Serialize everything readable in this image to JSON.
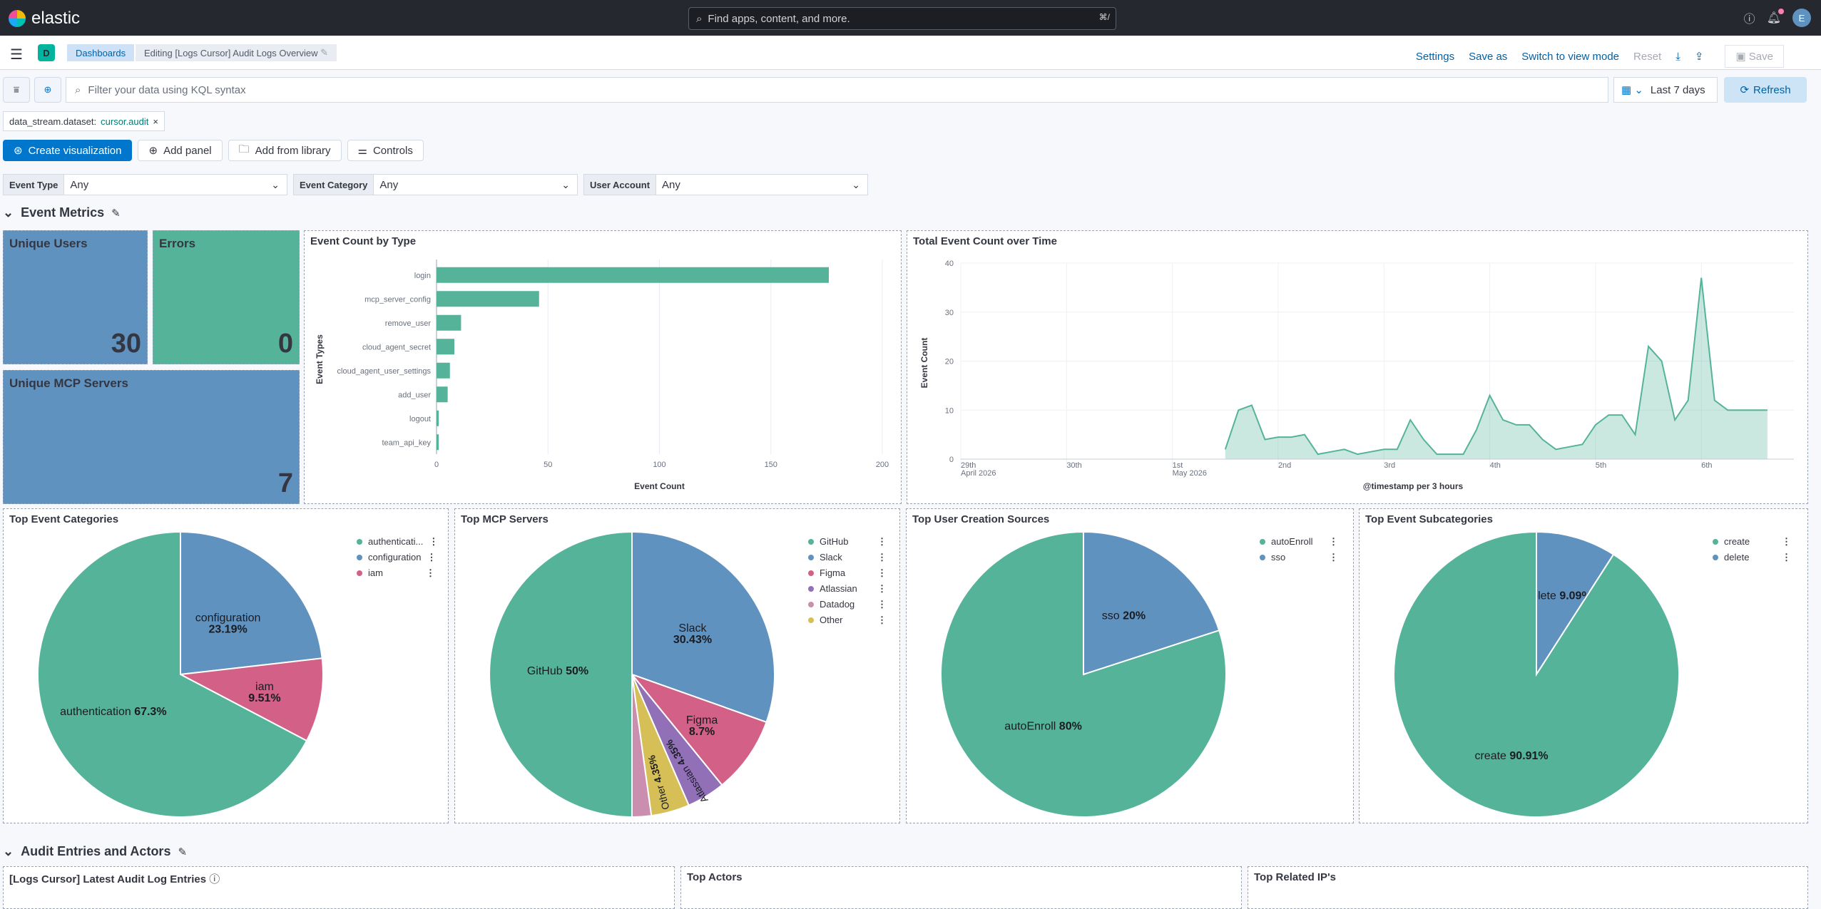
{
  "header": {
    "brand": "elastic",
    "search_placeholder": "Find apps, content, and more.",
    "search_shortcut": "⌘/",
    "user_initial": "E"
  },
  "nav": {
    "space_initial": "D",
    "breadcrumbs": [
      "Dashboards",
      "Editing [Logs Cursor] Audit Logs Overview"
    ],
    "actions": [
      "Settings",
      "Save as",
      "Switch to view mode",
      "Reset",
      "Save"
    ]
  },
  "query": {
    "placeholder": "Filter your data using KQL syntax",
    "time_range": "Last 7 days",
    "refresh_label": "Refresh",
    "filter_key": "data_stream.dataset:",
    "filter_value": "cursor.audit"
  },
  "toolbar": {
    "create_visualization": "Create visualization",
    "add_panel": "Add panel",
    "add_from_library": "Add from library",
    "controls": "Controls"
  },
  "control_inputs": [
    {
      "label": "Event Type",
      "value": "Any"
    },
    {
      "label": "Event Category",
      "value": "Any"
    },
    {
      "label": "User Account",
      "value": "Any"
    }
  ],
  "sections": {
    "event_metrics": "Event Metrics",
    "audit_entries": "Audit Entries and Actors"
  },
  "metrics": [
    {
      "label": "Unique Users",
      "value": "30"
    },
    {
      "label": "Errors",
      "value": "0"
    },
    {
      "label": "Unique MCP Servers",
      "value": "7"
    }
  ],
  "colors": {
    "green": "#54b399",
    "blue": "#6092c0",
    "pink": "#d36086",
    "purple": "#9170b8",
    "rose": "#ca8eae",
    "yellow": "#d6bf57",
    "accent": "#0077cc"
  },
  "chart_data": [
    {
      "type": "bar",
      "title": "Event Count by Type",
      "orientation": "horizontal",
      "categories": [
        "login",
        "mcp_server_config",
        "remove_user",
        "cloud_agent_secret",
        "cloud_agent_user_settings",
        "add_user",
        "logout",
        "team_api_key"
      ],
      "values": [
        176,
        46,
        11,
        8,
        6,
        5,
        1,
        1
      ],
      "xlabel": "Event Count",
      "ylabel": "Event Types",
      "xlim": [
        0,
        200
      ],
      "xticks": [
        "0",
        "50",
        "100",
        "150",
        "200"
      ]
    },
    {
      "type": "area",
      "title": "Total Event Count over Time",
      "ylabel": "Event Count",
      "xlabel": "@timestamp per 3 hours",
      "ylim": [
        0,
        40
      ],
      "yticks": [
        "0",
        "10",
        "20",
        "30",
        "40"
      ],
      "xticks": [
        {
          "label": "29th",
          "sub": "April 2026"
        },
        {
          "label": "30th",
          "sub": ""
        },
        {
          "label": "1st",
          "sub": "May 2026"
        },
        {
          "label": "2nd",
          "sub": ""
        },
        {
          "label": "3rd",
          "sub": ""
        },
        {
          "label": "4th",
          "sub": ""
        },
        {
          "label": "5th",
          "sub": ""
        },
        {
          "label": "6th",
          "sub": ""
        }
      ],
      "x": [
        "2026-05-01T12:00",
        "2026-05-01T15:00",
        "2026-05-01T18:00",
        "2026-05-01T21:00",
        "2026-05-02T00:00",
        "2026-05-02T03:00",
        "2026-05-02T06:00",
        "2026-05-02T09:00",
        "2026-05-02T12:00",
        "2026-05-02T15:00",
        "2026-05-02T18:00",
        "2026-05-02T21:00",
        "2026-05-03T00:00",
        "2026-05-03T03:00",
        "2026-05-03T06:00",
        "2026-05-03T09:00",
        "2026-05-03T12:00",
        "2026-05-03T15:00",
        "2026-05-03T18:00",
        "2026-05-03T21:00",
        "2026-05-04T00:00",
        "2026-05-04T03:00",
        "2026-05-04T06:00",
        "2026-05-04T09:00",
        "2026-05-04T12:00",
        "2026-05-04T15:00",
        "2026-05-04T18:00",
        "2026-05-04T21:00",
        "2026-05-05T00:00",
        "2026-05-05T03:00",
        "2026-05-05T06:00",
        "2026-05-05T09:00",
        "2026-05-05T12:00",
        "2026-05-05T15:00",
        "2026-05-05T18:00",
        "2026-05-05T21:00",
        "2026-05-06T00:00",
        "2026-05-06T03:00",
        "2026-05-06T06:00",
        "2026-05-06T09:00",
        "2026-05-06T12:00",
        "2026-05-06T15:00"
      ],
      "values": [
        2,
        10,
        11,
        4,
        4.5,
        4.5,
        5,
        1,
        1.5,
        2,
        1,
        1.5,
        2,
        2,
        8,
        4,
        1,
        1,
        1,
        6,
        13,
        8,
        7,
        7,
        4,
        2,
        2.5,
        3,
        7,
        9,
        9,
        5,
        23,
        20,
        8,
        12,
        37,
        12,
        10,
        10,
        10,
        10
      ]
    },
    {
      "type": "pie",
      "title": "Top Event Categories",
      "labels": [
        "authentication",
        "configuration",
        "iam"
      ],
      "legend_labels": [
        "authenticati...",
        "configuration",
        "iam"
      ],
      "values": [
        67.3,
        23.19,
        9.51
      ],
      "value_labels": [
        "67.3%",
        "23.19%",
        "9.51%"
      ]
    },
    {
      "type": "pie",
      "title": "Top MCP Servers",
      "labels": [
        "GitHub",
        "Slack",
        "Figma",
        "Atlassian",
        "Datadog",
        "Other"
      ],
      "values": [
        50,
        30.43,
        8.7,
        4.35,
        2.17,
        4.35
      ],
      "value_labels": [
        "50%",
        "30.43%",
        "8.7%",
        "4.35%",
        "",
        "4.35%"
      ]
    },
    {
      "type": "pie",
      "title": "Top User Creation Sources",
      "labels": [
        "autoEnroll",
        "sso"
      ],
      "values": [
        80,
        20
      ],
      "value_labels": [
        "80%",
        "20%"
      ]
    },
    {
      "type": "pie",
      "title": "Top Event Subcategories",
      "labels": [
        "create",
        "delete"
      ],
      "values": [
        90.91,
        9.09
      ],
      "value_labels": [
        "90.91%",
        "9.09%"
      ]
    }
  ],
  "bottom_panels": [
    {
      "title": "[Logs Cursor] Latest Audit Log Entries"
    },
    {
      "title": "Top Actors"
    },
    {
      "title": "Top Related IP's"
    }
  ]
}
